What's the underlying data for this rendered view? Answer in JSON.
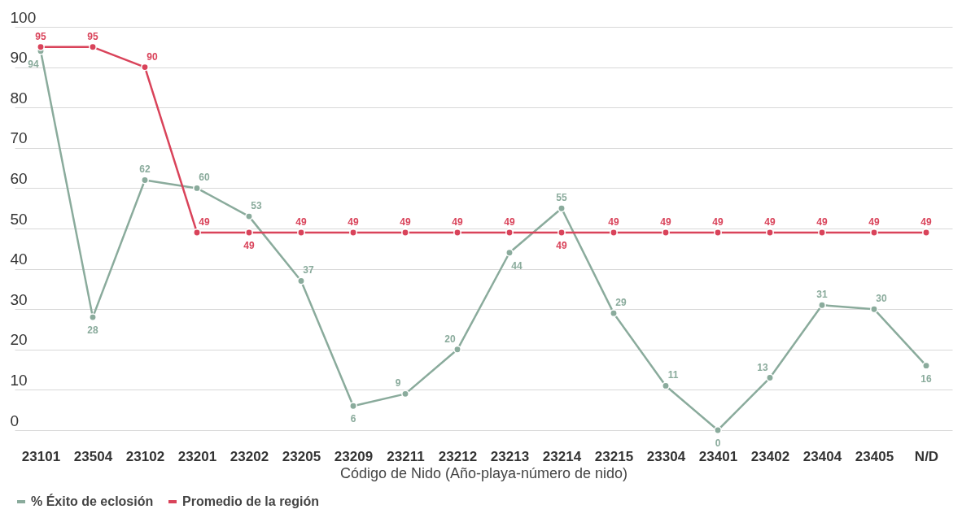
{
  "chart_data": {
    "type": "line",
    "xlabel": "Código de Nido (Año-playa-número de nido)",
    "categories": [
      "23101",
      "23504",
      "23102",
      "23201",
      "23202",
      "23205",
      "23209",
      "23211",
      "23212",
      "23213",
      "23214",
      "23215",
      "23304",
      "23401",
      "23402",
      "23404",
      "23405",
      "N/D"
    ],
    "series": [
      {
        "name": "% Éxito de eclosión",
        "color": "#8aab9c",
        "values": [
          94,
          28,
          62,
          60,
          53,
          37,
          6,
          9,
          20,
          44,
          55,
          29,
          11,
          0,
          13,
          31,
          30,
          16
        ]
      },
      {
        "name": "Promedio de la región",
        "color": "#d9435a",
        "values": [
          95,
          95,
          90,
          49,
          49,
          49,
          49,
          49,
          49,
          49,
          49,
          49,
          49,
          49,
          49,
          49,
          49,
          49
        ]
      }
    ],
    "ylim": [
      0,
      100
    ],
    "yticks": [
      0,
      10,
      20,
      30,
      40,
      50,
      60,
      70,
      80,
      90,
      100
    ],
    "grid": "y",
    "legend": "bottom",
    "marker": "circle",
    "line_style": "solid",
    "data_labels": true
  }
}
